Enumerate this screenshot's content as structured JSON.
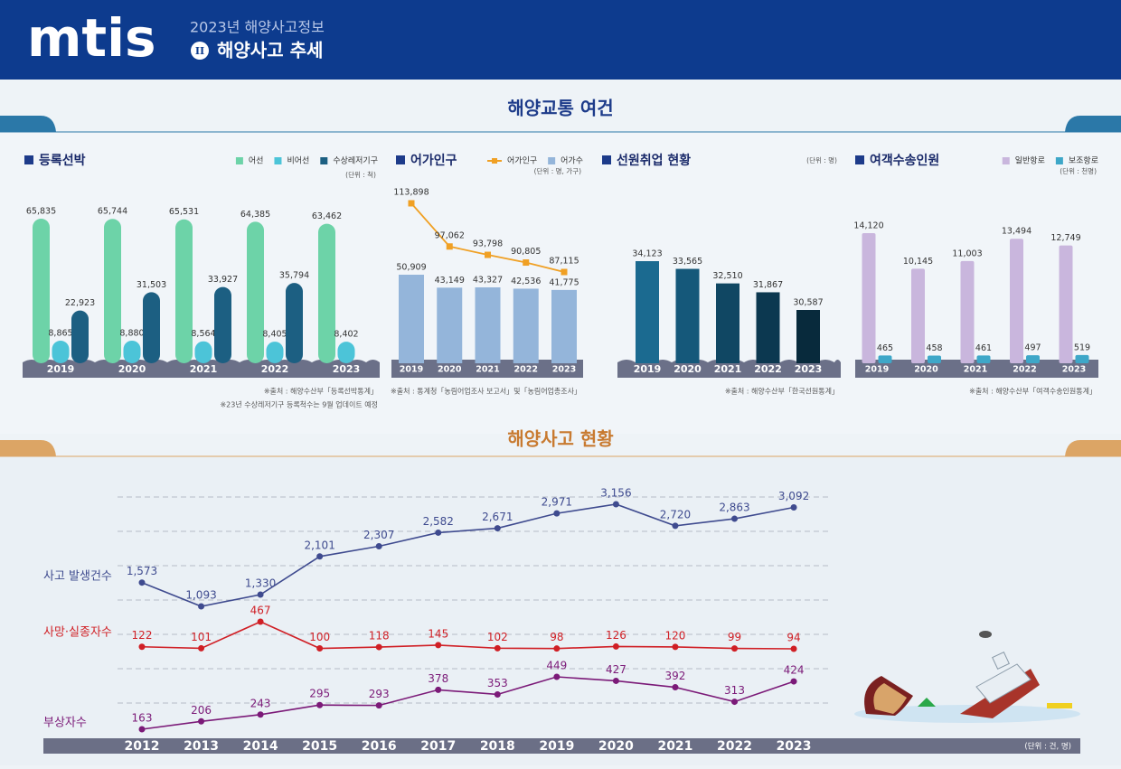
{
  "header": {
    "logo": "mtis",
    "subtitle": "2023년 해양사고정보",
    "chapter": "II",
    "title": "해양사고 추세"
  },
  "sections": [
    "해양교통 여건",
    "해양사고 현황"
  ],
  "chart_data": [
    {
      "type": "bar",
      "title": "등록선박",
      "unit": "(단위 : 척)",
      "categories": [
        "2019",
        "2020",
        "2021",
        "2022",
        "2023"
      ],
      "series": [
        {
          "name": "어선",
          "color": "#6dd3a8",
          "values": [
            65835,
            65744,
            65531,
            64385,
            63462
          ],
          "value_labels": [
            "65,835",
            "65,744",
            "65,531",
            "64,385",
            "63,462"
          ]
        },
        {
          "name": "비어선",
          "color": "#4cc4d8",
          "values": [
            8865,
            8880,
            8564,
            8405,
            8402
          ],
          "value_labels": [
            "8,865",
            "8,880",
            "8,564",
            "8,405",
            "8,402"
          ]
        },
        {
          "name": "수상레저기구",
          "color": "#1c5f82",
          "values": [
            22923,
            31503,
            33927,
            35794,
            null
          ],
          "value_labels": [
            "22,923",
            "31,503",
            "33,927",
            "35,794",
            null
          ]
        }
      ],
      "source": "※출처 : 해양수산부「등록선박통계」",
      "note": "※23년 수상레저기구 등록척수는 9월 업데이트 예정"
    },
    {
      "type": "bar",
      "title": "어가인구",
      "unit": "(단위 : 명, 가구)",
      "categories": [
        "2019",
        "2020",
        "2021",
        "2022",
        "2023"
      ],
      "series": [
        {
          "name": "어가인구",
          "type": "line",
          "color": "#f0a024",
          "values": [
            113898,
            97062,
            93798,
            90805,
            87115
          ],
          "value_labels": [
            "113,898",
            "97,062",
            "93,798",
            "90,805",
            "87,115"
          ]
        },
        {
          "name": "어가수",
          "type": "bar",
          "color": "#94b5da",
          "values": [
            50909,
            43149,
            43327,
            42536,
            41775
          ],
          "value_labels": [
            "50,909",
            "43,149",
            "43,327",
            "42,536",
            "41,775"
          ]
        }
      ],
      "source": "※출처 : 통계청「농림어업조사 보고서」및「농림어업총조사」"
    },
    {
      "type": "bar",
      "title": "선원취업 현황",
      "unit": "(단위 : 명)",
      "categories": [
        "2019",
        "2020",
        "2021",
        "2022",
        "2023"
      ],
      "values": [
        34123,
        33565,
        32510,
        31867,
        30587
      ],
      "value_labels": [
        "34,123",
        "33,565",
        "32,510",
        "31,867",
        "30,587"
      ],
      "colors": [
        "#1b6a90",
        "#15587a",
        "#104763",
        "#0c3850",
        "#082a3c"
      ],
      "source": "※출처 : 해양수산부「한국선원통계」"
    },
    {
      "type": "bar",
      "title": "여객수송인원",
      "unit": "(단위 : 천명)",
      "categories": [
        "2019",
        "2020",
        "2021",
        "2022",
        "2023"
      ],
      "series": [
        {
          "name": "일반항로",
          "color": "#c9b6dd",
          "values": [
            14120,
            10145,
            11003,
            13494,
            12749
          ],
          "value_labels": [
            "14,120",
            "10,145",
            "11,003",
            "13,494",
            "12,749"
          ]
        },
        {
          "name": "보조항로",
          "color": "#3ea7c8",
          "values": [
            465,
            458,
            461,
            497,
            519
          ],
          "value_labels": [
            "465",
            "458",
            "461",
            "497",
            "519"
          ]
        }
      ],
      "source": "※출처 : 해양수산부「여객수송인원통계」"
    },
    {
      "type": "line",
      "unit": "(단위 : 건, 명)",
      "categories": [
        "2012",
        "2013",
        "2014",
        "2015",
        "2016",
        "2017",
        "2018",
        "2019",
        "2020",
        "2021",
        "2022",
        "2023"
      ],
      "series": [
        {
          "name": "사고 발생건수",
          "color": "#3f4b8f",
          "values": [
            1573,
            1093,
            1330,
            2101,
            2307,
            2582,
            2671,
            2971,
            3156,
            2720,
            2863,
            3092
          ],
          "value_labels": [
            "1,573",
            "1,093",
            "1,330",
            "2,101",
            "2,307",
            "2,582",
            "2,671",
            "2,971",
            "3,156",
            "2,720",
            "2,863",
            "3,092"
          ]
        },
        {
          "name": "사망·실종자수",
          "color": "#d01f25",
          "values": [
            122,
            101,
            467,
            100,
            118,
            145,
            102,
            98,
            126,
            120,
            99,
            94
          ],
          "value_labels": [
            "122",
            "101",
            "467",
            "100",
            "118",
            "145",
            "102",
            "98",
            "126",
            "120",
            "99",
            "94"
          ]
        },
        {
          "name": "부상자수",
          "color": "#7b1a78",
          "values": [
            163,
            206,
            243,
            295,
            293,
            378,
            353,
            449,
            427,
            392,
            313,
            424
          ],
          "value_labels": [
            "163",
            "206",
            "243",
            "295",
            "293",
            "378",
            "353",
            "449",
            "427",
            "392",
            "313",
            "424"
          ]
        }
      ]
    }
  ]
}
